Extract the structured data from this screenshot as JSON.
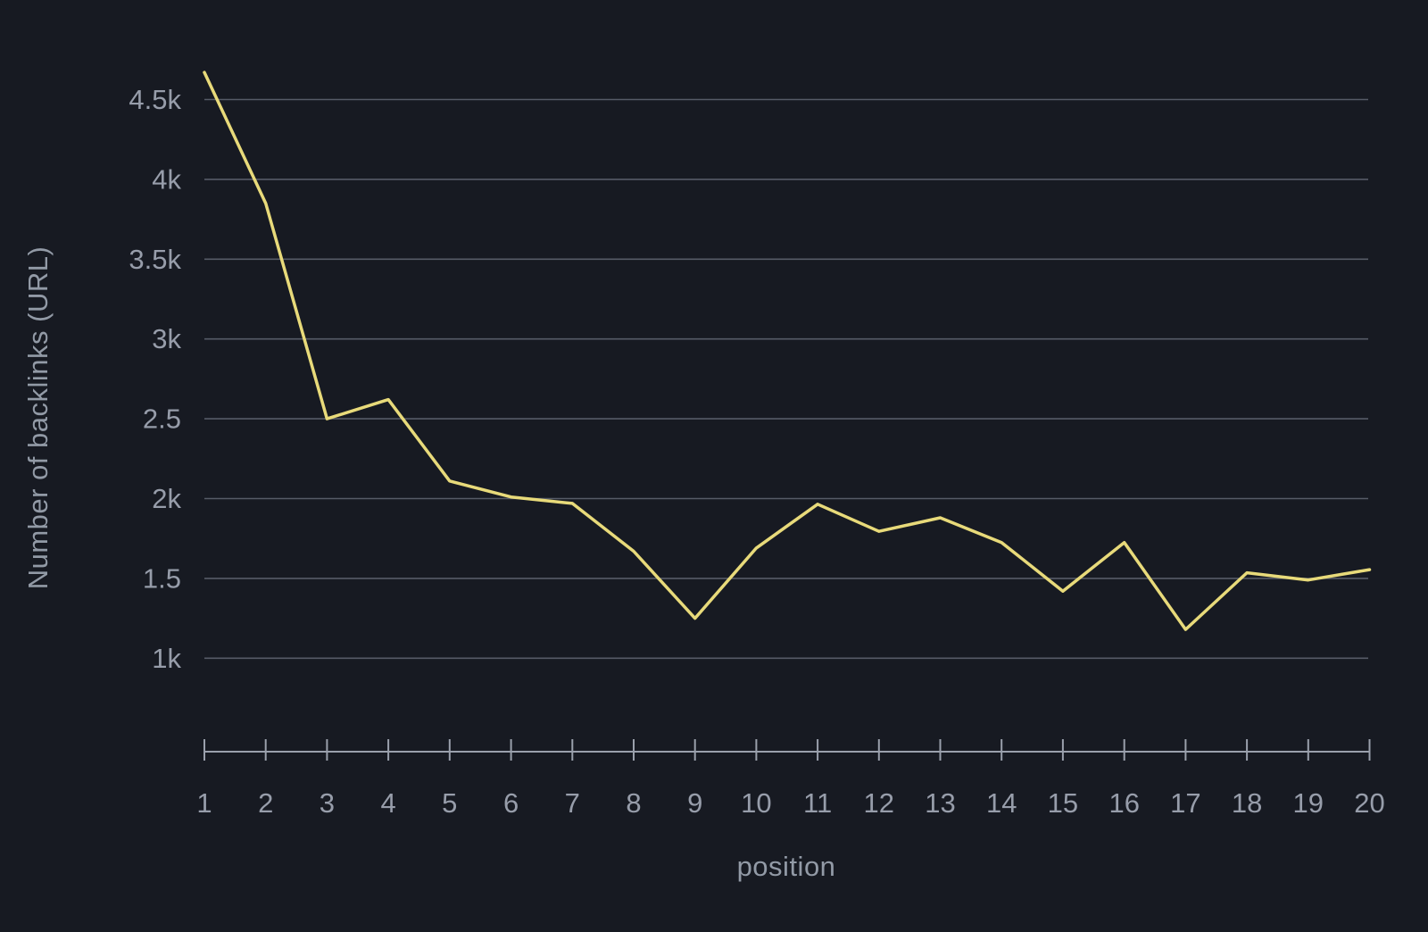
{
  "chart_data": {
    "type": "line",
    "title": "",
    "xlabel": "position",
    "ylabel": "Number of backlinks (URL)",
    "x": [
      1,
      2,
      3,
      4,
      5,
      6,
      7,
      8,
      9,
      10,
      11,
      12,
      13,
      14,
      15,
      16,
      17,
      18,
      19,
      20
    ],
    "series": [
      {
        "name": "Number of backlinks (URL)",
        "values": [
          4670,
          3850,
          2500,
          2620,
          2110,
          2010,
          1970,
          1670,
          1250,
          1690,
          1965,
          1795,
          1880,
          1725,
          1420,
          1725,
          1180,
          1535,
          1490,
          1555
        ]
      }
    ],
    "ylim": [
      1000,
      4750
    ],
    "xlim": [
      1,
      20
    ],
    "y_ticks": [
      {
        "value": 4500,
        "label": "4.5k"
      },
      {
        "value": 4000,
        "label": "4k"
      },
      {
        "value": 3500,
        "label": "3.5k"
      },
      {
        "value": 3000,
        "label": "3k"
      },
      {
        "value": 2500,
        "label": "2.5"
      },
      {
        "value": 2000,
        "label": "2k"
      },
      {
        "value": 1500,
        "label": "1.5"
      },
      {
        "value": 1000,
        "label": "1k"
      }
    ],
    "x_tick_labels": [
      "1",
      "2",
      "3",
      "4",
      "5",
      "6",
      "7",
      "8",
      "9",
      "10",
      "11",
      "12",
      "13",
      "14",
      "15",
      "16",
      "17",
      "18",
      "19",
      "20"
    ],
    "grid": "horizontal-only",
    "legend": "none",
    "colors": {
      "background": "#171a22",
      "line": "#e8da7a",
      "gridline": "#565b67",
      "axis": "#9aa0ac",
      "tick_label": "#979daa",
      "axis_title": "#929aa6"
    }
  }
}
